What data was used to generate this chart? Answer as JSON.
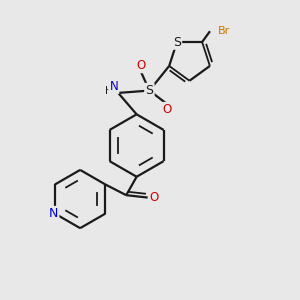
{
  "background_color": "#e8e8e8",
  "bond_color": "#1a1a1a",
  "S_color": "#1a1a1a",
  "N_color": "#0000cc",
  "O_color": "#cc0000",
  "Br_color": "#cc7700",
  "figsize": [
    3.0,
    3.0
  ],
  "dpi": 100,
  "xlim": [
    0,
    10
  ],
  "ylim": [
    0,
    10
  ]
}
